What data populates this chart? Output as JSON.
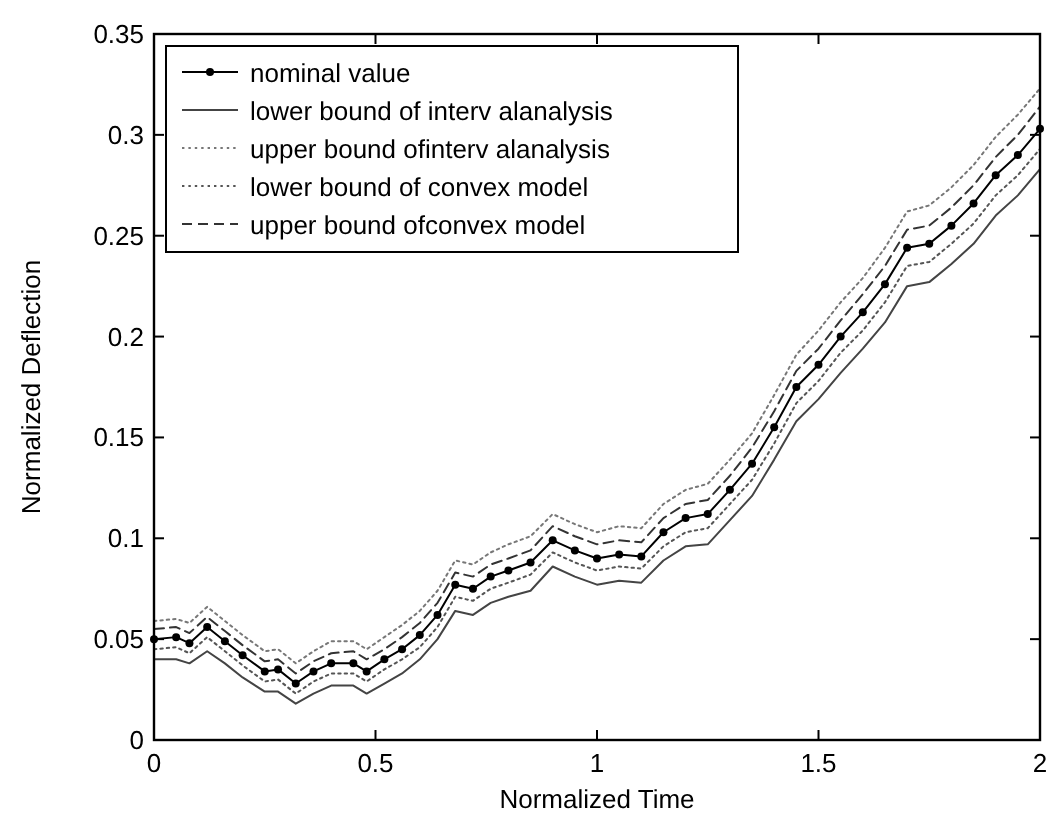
{
  "chart_data": {
    "type": "line",
    "xlabel": "Normalized Time",
    "ylabel": "Normalized Deflection",
    "xlim": [
      0,
      2
    ],
    "ylim": [
      0,
      0.35
    ],
    "xticks": [
      0,
      0.5,
      1,
      1.5,
      2
    ],
    "yticks": [
      0,
      0.05,
      0.1,
      0.15,
      0.2,
      0.25,
      0.3,
      0.35
    ],
    "grid": false,
    "legend": "top left",
    "x": [
      0,
      0.05,
      0.08,
      0.12,
      0.16,
      0.2,
      0.25,
      0.28,
      0.32,
      0.36,
      0.4,
      0.45,
      0.48,
      0.52,
      0.56,
      0.6,
      0.64,
      0.68,
      0.72,
      0.76,
      0.8,
      0.85,
      0.9,
      0.95,
      1.0,
      1.05,
      1.1,
      1.15,
      1.2,
      1.25,
      1.3,
      1.35,
      1.4,
      1.45,
      1.5,
      1.55,
      1.6,
      1.65,
      1.7,
      1.75,
      1.8,
      1.85,
      1.9,
      1.95,
      2.0
    ],
    "series": [
      {
        "name": "nominal value",
        "color": "#000000",
        "line_style": "solid",
        "marker": "circle",
        "values": [
          0.05,
          0.051,
          0.048,
          0.056,
          0.049,
          0.042,
          0.034,
          0.035,
          0.028,
          0.034,
          0.038,
          0.038,
          0.034,
          0.04,
          0.045,
          0.052,
          0.062,
          0.077,
          0.075,
          0.081,
          0.084,
          0.088,
          0.099,
          0.094,
          0.09,
          0.092,
          0.091,
          0.103,
          0.11,
          0.112,
          0.124,
          0.137,
          0.155,
          0.175,
          0.186,
          0.2,
          0.212,
          0.226,
          0.244,
          0.246,
          0.255,
          0.266,
          0.28,
          0.29,
          0.303
        ]
      },
      {
        "name": "lower bound of interv alanalysis",
        "color": "#444444",
        "line_style": "solid",
        "values": [
          0.04,
          0.04,
          0.038,
          0.044,
          0.038,
          0.031,
          0.024,
          0.024,
          0.018,
          0.023,
          0.027,
          0.027,
          0.023,
          0.028,
          0.033,
          0.04,
          0.05,
          0.064,
          0.062,
          0.068,
          0.071,
          0.074,
          0.086,
          0.081,
          0.077,
          0.079,
          0.078,
          0.089,
          0.096,
          0.097,
          0.109,
          0.121,
          0.139,
          0.158,
          0.169,
          0.182,
          0.194,
          0.207,
          0.225,
          0.227,
          0.236,
          0.246,
          0.26,
          0.27,
          0.283
        ]
      },
      {
        "name": "upper bound ofinterv alanalysis",
        "color": "#777777",
        "line_style": "dotted",
        "values": [
          0.059,
          0.06,
          0.058,
          0.066,
          0.059,
          0.052,
          0.044,
          0.045,
          0.038,
          0.044,
          0.049,
          0.049,
          0.045,
          0.051,
          0.057,
          0.064,
          0.074,
          0.089,
          0.087,
          0.093,
          0.097,
          0.101,
          0.112,
          0.107,
          0.103,
          0.106,
          0.105,
          0.117,
          0.124,
          0.127,
          0.139,
          0.152,
          0.171,
          0.191,
          0.203,
          0.217,
          0.229,
          0.244,
          0.262,
          0.265,
          0.274,
          0.285,
          0.299,
          0.31,
          0.323
        ]
      },
      {
        "name": "lower bound of convex model",
        "color": "#555555",
        "line_style": "dotted",
        "values": [
          0.045,
          0.046,
          0.043,
          0.051,
          0.044,
          0.037,
          0.029,
          0.03,
          0.023,
          0.029,
          0.033,
          0.033,
          0.029,
          0.035,
          0.04,
          0.046,
          0.056,
          0.071,
          0.069,
          0.075,
          0.078,
          0.082,
          0.093,
          0.088,
          0.084,
          0.086,
          0.085,
          0.096,
          0.103,
          0.105,
          0.117,
          0.129,
          0.147,
          0.167,
          0.178,
          0.192,
          0.203,
          0.217,
          0.235,
          0.237,
          0.246,
          0.256,
          0.27,
          0.28,
          0.293
        ]
      },
      {
        "name": "upper bound ofconvex model",
        "color": "#333333",
        "line_style": "dashed",
        "values": [
          0.055,
          0.056,
          0.053,
          0.061,
          0.054,
          0.047,
          0.039,
          0.04,
          0.033,
          0.039,
          0.043,
          0.044,
          0.04,
          0.045,
          0.051,
          0.058,
          0.068,
          0.083,
          0.081,
          0.087,
          0.09,
          0.094,
          0.106,
          0.101,
          0.097,
          0.099,
          0.098,
          0.11,
          0.117,
          0.119,
          0.131,
          0.145,
          0.163,
          0.183,
          0.194,
          0.208,
          0.221,
          0.235,
          0.253,
          0.255,
          0.264,
          0.275,
          0.289,
          0.3,
          0.314
        ]
      }
    ]
  }
}
